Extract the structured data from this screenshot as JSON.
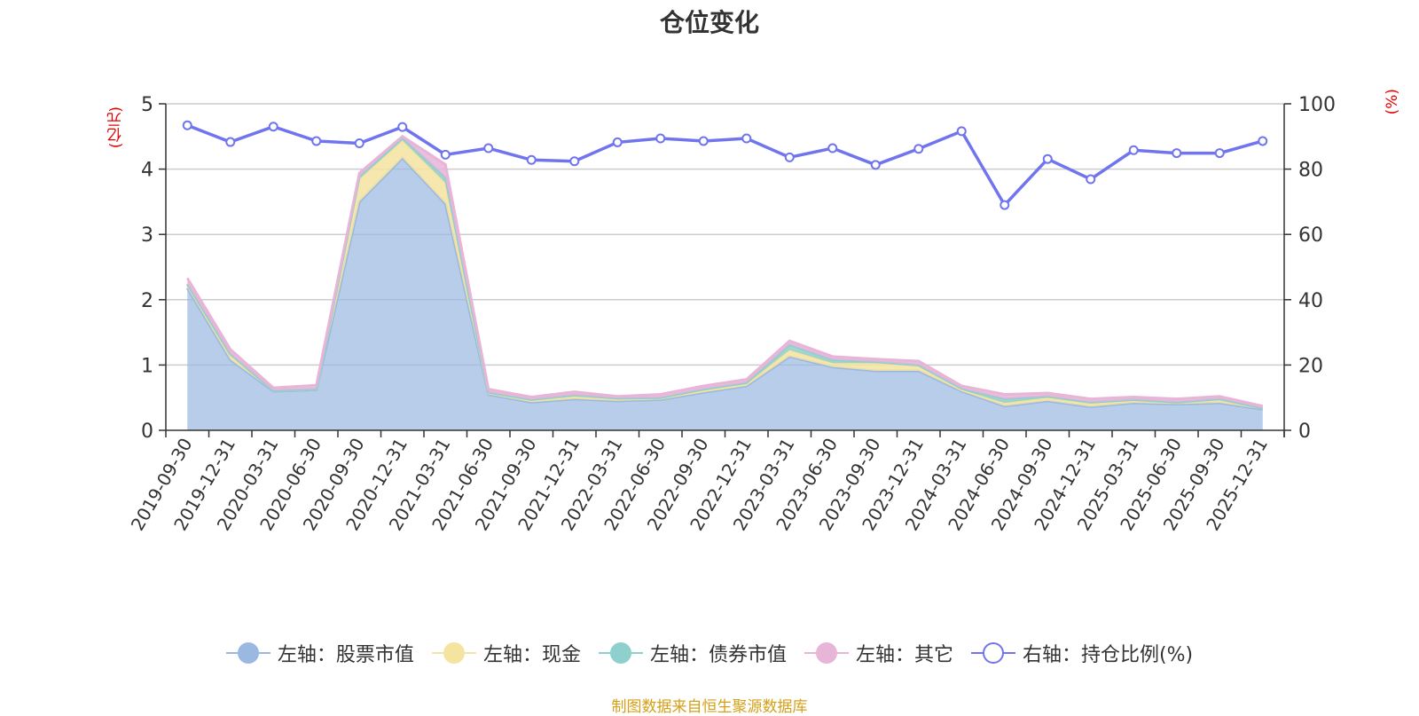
{
  "chart_data": {
    "type": "area",
    "title": "仓位变化",
    "left_unit": "(亿元)",
    "right_unit": "(%)",
    "categories": [
      "2019-09-30",
      "2019-12-31",
      "2020-03-31",
      "2020-06-30",
      "2020-09-30",
      "2020-12-31",
      "2021-03-31",
      "2021-06-30",
      "2021-09-30",
      "2021-12-31",
      "2022-03-31",
      "2022-06-30",
      "2022-09-30",
      "2022-12-31",
      "2023-03-31",
      "2023-06-30",
      "2023-09-30",
      "2023-12-31",
      "2024-03-31",
      "2024-06-30",
      "2024-09-30",
      "2024-12-31",
      "2025-03-31",
      "2025-06-30",
      "2025-09-30",
      "2025-12-31"
    ],
    "left_axis": {
      "min": 0,
      "max": 5,
      "ticks": [
        "0",
        "1",
        "2",
        "3",
        "4",
        "5"
      ]
    },
    "right_axis": {
      "min": 0,
      "max": 100,
      "ticks": [
        "0",
        "20",
        "40",
        "60",
        "80",
        "100"
      ]
    },
    "stacked_series": [
      {
        "name": "左轴：股票市值",
        "color": "#9ab8e0",
        "values": [
          2.18,
          1.08,
          0.6,
          0.62,
          3.5,
          4.17,
          3.47,
          0.55,
          0.43,
          0.48,
          0.45,
          0.47,
          0.58,
          0.68,
          1.13,
          0.97,
          0.91,
          0.91,
          0.6,
          0.37,
          0.45,
          0.36,
          0.42,
          0.4,
          0.42,
          0.32
        ]
      },
      {
        "name": "左轴：现金",
        "color": "#f5e3a0",
        "values": [
          0.05,
          0.08,
          0.01,
          0.01,
          0.35,
          0.27,
          0.32,
          0.02,
          0.03,
          0.04,
          0.03,
          0.02,
          0.03,
          0.03,
          0.1,
          0.06,
          0.12,
          0.07,
          0.02,
          0.05,
          0.05,
          0.05,
          0.04,
          0.03,
          0.05,
          0.02
        ]
      },
      {
        "name": "左轴：债券市值",
        "color": "#8fd0cf",
        "values": [
          0.01,
          0.01,
          0.0,
          0.0,
          0.04,
          0.04,
          0.08,
          0.01,
          0.01,
          0.02,
          0.01,
          0.01,
          0.02,
          0.02,
          0.08,
          0.05,
          0.02,
          0.02,
          0.02,
          0.06,
          0.02,
          0.02,
          0.01,
          0.0,
          0.01,
          0.0
        ]
      },
      {
        "name": "左轴：其它",
        "color": "#e8b4d8",
        "values": [
          0.09,
          0.07,
          0.04,
          0.06,
          0.05,
          0.02,
          0.2,
          0.05,
          0.04,
          0.05,
          0.03,
          0.05,
          0.05,
          0.05,
          0.06,
          0.05,
          0.04,
          0.06,
          0.04,
          0.07,
          0.05,
          0.05,
          0.04,
          0.05,
          0.04,
          0.03
        ]
      }
    ],
    "line_series": {
      "name": "右轴：持仓比例(%)",
      "color": "#7074ee",
      "values": [
        93.4,
        88.3,
        93.0,
        88.6,
        87.9,
        92.9,
        84.4,
        86.4,
        82.8,
        82.4,
        88.2,
        89.4,
        88.6,
        89.4,
        83.6,
        86.4,
        81.3,
        86.2,
        91.6,
        69.0,
        83.1,
        76.9,
        85.8,
        84.9,
        84.9,
        88.6
      ]
    },
    "legend_position": "bottom",
    "grid": true
  },
  "legend": [
    {
      "label": "左轴：股票市值",
      "color": "#9ab8e0",
      "hollow": false
    },
    {
      "label": "左轴：现金",
      "color": "#f5e3a0",
      "hollow": false
    },
    {
      "label": "左轴：债券市值",
      "color": "#8fd0cf",
      "hollow": false
    },
    {
      "label": "左轴：其它",
      "color": "#e8b4d8",
      "hollow": false
    },
    {
      "label": "右轴：持仓比例(%)",
      "color": "#7074ee",
      "hollow": true
    }
  ],
  "source": "制图数据来自恒生聚源数据库"
}
